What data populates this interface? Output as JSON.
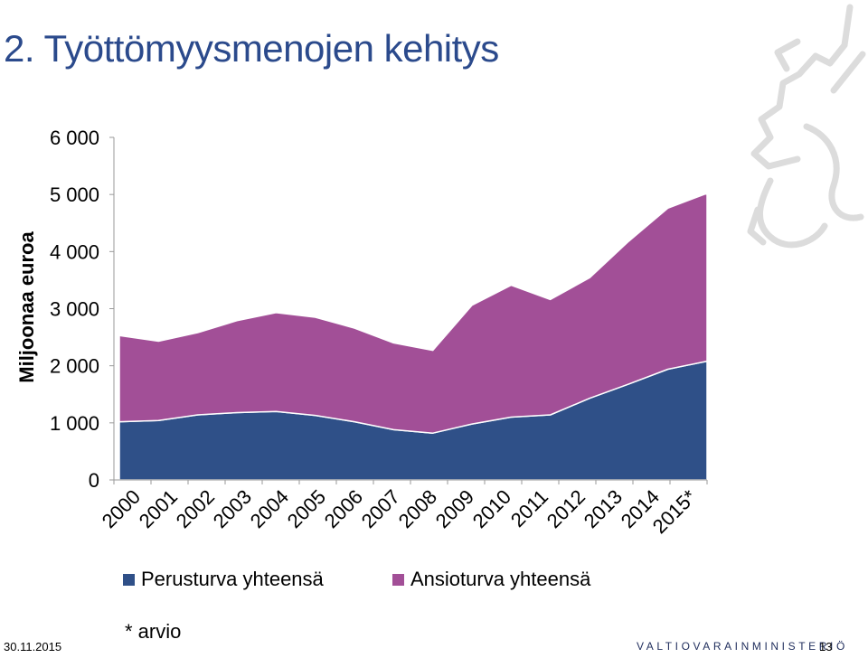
{
  "title": "2. Työttömyysmenojen kehitys",
  "chart_data": {
    "type": "area",
    "stacked": true,
    "categories": [
      "2000",
      "2001",
      "2002",
      "2003",
      "2004",
      "2005",
      "2006",
      "2007",
      "2008",
      "2009",
      "2010",
      "2011",
      "2012",
      "2013",
      "2014",
      "2015*"
    ],
    "series": [
      {
        "name": "Perusturva yhteensä",
        "color": "#2f5088",
        "values": [
          1020,
          1040,
          1140,
          1180,
          1200,
          1130,
          1020,
          880,
          820,
          980,
          1100,
          1140,
          1430,
          1680,
          1940,
          2080
        ]
      },
      {
        "name": "Ansioturva yhteensä",
        "color": "#a24f97",
        "values": [
          1510,
          1390,
          1440,
          1610,
          1730,
          1720,
          1640,
          1520,
          1450,
          2080,
          2310,
          2020,
          2110,
          2500,
          2820,
          2940
        ]
      }
    ],
    "ylabel": "Miljoonaa euroa",
    "ylim": [
      0,
      6000
    ],
    "yticks": [
      0,
      1000,
      2000,
      3000,
      4000,
      5000,
      6000
    ],
    "ytick_labels": [
      "0",
      "1 000",
      "2 000",
      "3 000",
      "4 000",
      "5 000",
      "6 000"
    ],
    "grid": false,
    "legend": "bottom",
    "note": "* arvio"
  },
  "footer": {
    "date": "30.11.2015",
    "ministry": "VALTIOVARAINMINISTERIÖ",
    "page": "13"
  }
}
